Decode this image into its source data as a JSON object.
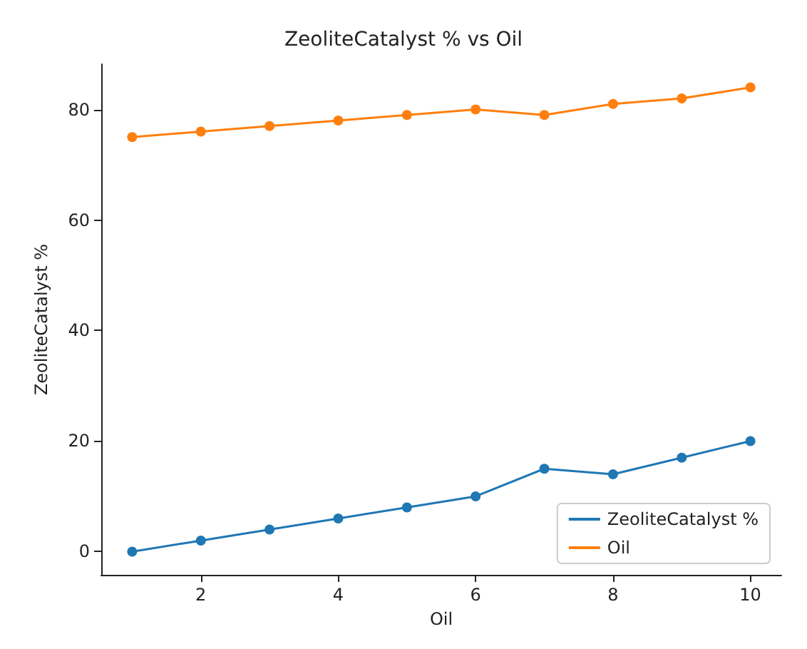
{
  "chart_data": {
    "type": "line",
    "title": "ZeoliteCatalyst % vs Oil",
    "xlabel": "Oil",
    "ylabel": "ZeoliteCatalyst %",
    "x": [
      1,
      2,
      3,
      4,
      5,
      6,
      7,
      8,
      9,
      10
    ],
    "series": [
      {
        "name": "ZeoliteCatalyst %",
        "color": "#1f77b4",
        "values": [
          0,
          2,
          4,
          6,
          8,
          10,
          15,
          14,
          17,
          20
        ]
      },
      {
        "name": "Oil",
        "color": "#ff7f0e",
        "values": [
          75,
          76,
          77,
          78,
          79,
          80,
          79,
          81,
          82,
          84
        ]
      }
    ],
    "xlim": [
      0.55,
      10.45
    ],
    "xticks": [
      2,
      4,
      6,
      8,
      10
    ],
    "ylim": [
      -4.2,
      88.2
    ],
    "yticks": [
      0,
      20,
      40,
      60,
      80
    ],
    "marker": "circle",
    "legend": "bottom right",
    "grid": false
  }
}
